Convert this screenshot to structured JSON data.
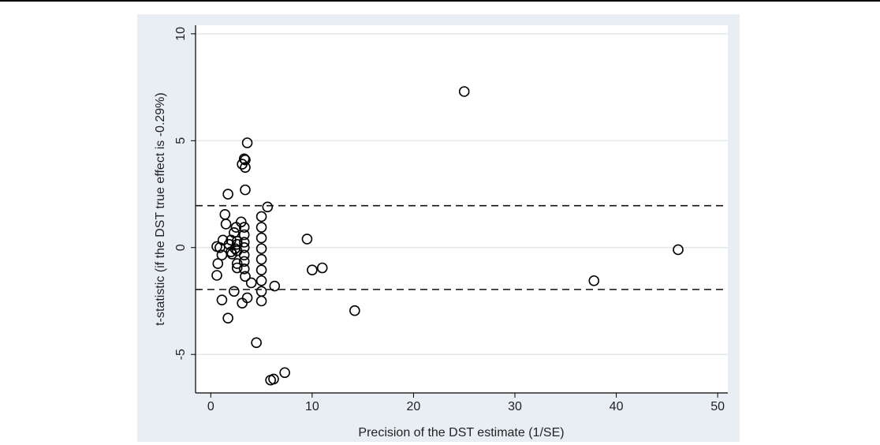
{
  "chart_data": {
    "type": "scatter",
    "title": "",
    "xlabel": "Precision of the DST estimate (1/SE)",
    "ylabel": "t-statistic (if the DST true effect is -0.29%)",
    "xlim": [
      -1.5,
      51
    ],
    "ylim": [
      -6.8,
      10.4
    ],
    "x_ticks": [
      0,
      10,
      20,
      30,
      40,
      50
    ],
    "y_ticks": [
      -5,
      0,
      5,
      10
    ],
    "reference_lines_y": [
      1.96,
      -1.96
    ],
    "grid": true,
    "points": [
      {
        "x": 0.6,
        "y": 0.05
      },
      {
        "x": 0.9,
        "y": 0.0
      },
      {
        "x": 0.7,
        "y": -0.75
      },
      {
        "x": 0.6,
        "y": -1.3
      },
      {
        "x": 1.1,
        "y": -0.35
      },
      {
        "x": 1.2,
        "y": 0.35
      },
      {
        "x": 1.1,
        "y": -2.45
      },
      {
        "x": 1.4,
        "y": 1.55
      },
      {
        "x": 1.5,
        "y": 1.1
      },
      {
        "x": 1.7,
        "y": 2.5
      },
      {
        "x": 1.7,
        "y": -3.3
      },
      {
        "x": 1.8,
        "y": 0.15
      },
      {
        "x": 2.0,
        "y": 0.35
      },
      {
        "x": 2.0,
        "y": -0.2
      },
      {
        "x": 2.1,
        "y": -0.3
      },
      {
        "x": 2.3,
        "y": 0.7
      },
      {
        "x": 2.4,
        "y": -0.05
      },
      {
        "x": 2.3,
        "y": -2.05
      },
      {
        "x": 2.5,
        "y": 0.95
      },
      {
        "x": 2.6,
        "y": 0.3
      },
      {
        "x": 2.6,
        "y": 0.15
      },
      {
        "x": 2.6,
        "y": -0.15
      },
      {
        "x": 2.6,
        "y": -0.75
      },
      {
        "x": 2.6,
        "y": -0.95
      },
      {
        "x": 3.0,
        "y": 1.2
      },
      {
        "x": 3.1,
        "y": 3.9
      },
      {
        "x": 3.1,
        "y": -2.6
      },
      {
        "x": 3.3,
        "y": 4.15
      },
      {
        "x": 3.4,
        "y": 4.1
      },
      {
        "x": 3.4,
        "y": 3.75
      },
      {
        "x": 3.3,
        "y": 0.95
      },
      {
        "x": 3.3,
        "y": 0.6
      },
      {
        "x": 3.3,
        "y": 0.25
      },
      {
        "x": 3.3,
        "y": 0.0
      },
      {
        "x": 3.3,
        "y": -0.35
      },
      {
        "x": 3.3,
        "y": -0.65
      },
      {
        "x": 3.3,
        "y": -1.0
      },
      {
        "x": 3.4,
        "y": -1.35
      },
      {
        "x": 3.4,
        "y": 2.7
      },
      {
        "x": 3.6,
        "y": 4.9
      },
      {
        "x": 3.6,
        "y": -2.35
      },
      {
        "x": 4.0,
        "y": -1.65
      },
      {
        "x": 4.5,
        "y": -4.45
      },
      {
        "x": 5.0,
        "y": 1.45
      },
      {
        "x": 5.0,
        "y": 0.95
      },
      {
        "x": 5.0,
        "y": 0.45
      },
      {
        "x": 5.0,
        "y": -0.05
      },
      {
        "x": 5.0,
        "y": -0.55
      },
      {
        "x": 5.0,
        "y": -1.05
      },
      {
        "x": 5.0,
        "y": -1.55
      },
      {
        "x": 5.0,
        "y": -2.05
      },
      {
        "x": 5.0,
        "y": -2.5
      },
      {
        "x": 5.6,
        "y": 1.9
      },
      {
        "x": 5.9,
        "y": -6.2
      },
      {
        "x": 6.2,
        "y": -6.15
      },
      {
        "x": 6.3,
        "y": -1.8
      },
      {
        "x": 7.3,
        "y": -5.85
      },
      {
        "x": 9.5,
        "y": 0.4
      },
      {
        "x": 10.0,
        "y": -1.05
      },
      {
        "x": 11.0,
        "y": -0.95
      },
      {
        "x": 14.2,
        "y": -2.95
      },
      {
        "x": 25.0,
        "y": 7.3
      },
      {
        "x": 37.8,
        "y": -1.55
      },
      {
        "x": 46.1,
        "y": -0.1
      }
    ]
  }
}
